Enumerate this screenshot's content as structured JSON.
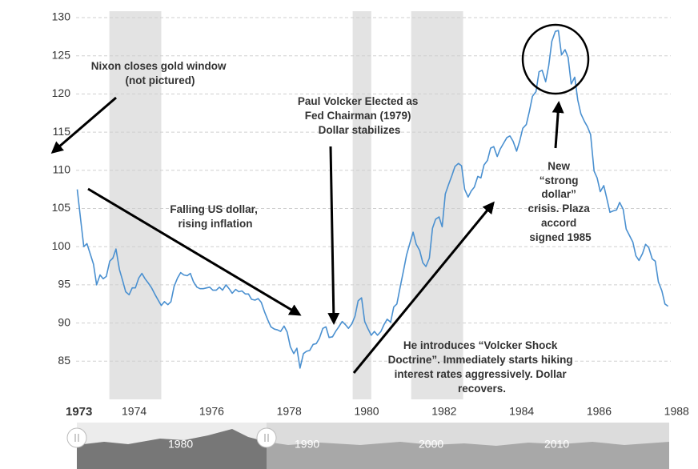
{
  "chart_data": {
    "type": "line",
    "x_start_label": "1973",
    "xlim": [
      1972.5,
      1987.85
    ],
    "xticks": [
      1974,
      1976,
      1978,
      1980,
      1982,
      1984,
      1986,
      1988
    ],
    "ylim": [
      80,
      130
    ],
    "yticks": [
      85,
      90,
      95,
      100,
      105,
      110,
      115,
      120,
      125,
      130
    ],
    "grid": true,
    "shaded_periods": [
      [
        1973.36,
        1974.7
      ],
      [
        1979.64,
        1980.12
      ],
      [
        1981.15,
        1982.49
      ]
    ],
    "series": [
      {
        "color": "#4a90d0",
        "x": [
          1972.53,
          1972.62,
          1972.7,
          1972.78,
          1972.87,
          1972.95,
          1973.03,
          1973.12,
          1973.2,
          1973.28,
          1973.37,
          1973.45,
          1973.53,
          1973.62,
          1973.7,
          1973.78,
          1973.87,
          1973.95,
          1974.03,
          1974.12,
          1974.2,
          1974.28,
          1974.37,
          1974.45,
          1974.53,
          1974.62,
          1974.7,
          1974.78,
          1974.87,
          1974.95,
          1975.03,
          1975.12,
          1975.2,
          1975.28,
          1975.37,
          1975.45,
          1975.53,
          1975.62,
          1975.7,
          1975.78,
          1975.87,
          1975.95,
          1976.03,
          1976.12,
          1976.2,
          1976.28,
          1976.37,
          1976.45,
          1976.53,
          1976.62,
          1976.7,
          1976.78,
          1976.87,
          1976.95,
          1977.03,
          1977.12,
          1977.2,
          1977.28,
          1977.37,
          1977.45,
          1977.53,
          1977.62,
          1977.7,
          1977.78,
          1977.87,
          1977.95,
          1978.03,
          1978.12,
          1978.2,
          1978.28,
          1978.37,
          1978.45,
          1978.53,
          1978.62,
          1978.7,
          1978.78,
          1978.87,
          1978.95,
          1979.03,
          1979.12,
          1979.2,
          1979.28,
          1979.37,
          1979.45,
          1979.53,
          1979.62,
          1979.7,
          1979.78,
          1979.87,
          1979.95,
          1980.03,
          1980.12,
          1980.2,
          1980.28,
          1980.37,
          1980.45,
          1980.53,
          1980.62,
          1980.7,
          1980.78,
          1980.87,
          1980.95,
          1981.03,
          1981.12,
          1981.2,
          1981.28,
          1981.37,
          1981.45,
          1981.53,
          1981.62,
          1981.7,
          1981.78,
          1981.87,
          1981.95,
          1982.03,
          1982.12,
          1982.2,
          1982.28,
          1982.37,
          1982.45,
          1982.53,
          1982.62,
          1982.7,
          1982.78,
          1982.87,
          1982.95,
          1983.03,
          1983.12,
          1983.2,
          1983.28,
          1983.37,
          1983.45,
          1983.53,
          1983.62,
          1983.7,
          1983.78,
          1983.87,
          1983.95,
          1984.03,
          1984.12,
          1984.2,
          1984.28,
          1984.37,
          1984.45,
          1984.53,
          1984.62,
          1984.7,
          1984.78,
          1984.87,
          1984.95,
          1985.03,
          1985.12,
          1985.2,
          1985.28,
          1985.37,
          1985.45,
          1985.53,
          1985.62,
          1985.7,
          1985.78,
          1985.87,
          1985.95,
          1986.03,
          1986.12,
          1986.2,
          1986.28,
          1986.37,
          1986.45,
          1986.53,
          1986.62,
          1986.7,
          1986.78,
          1986.87,
          1986.95,
          1987.03,
          1987.12,
          1987.2,
          1987.28,
          1987.37,
          1987.45,
          1987.53,
          1987.62,
          1987.7,
          1987.78
        ],
        "values": [
          107.5,
          103.5,
          100.0,
          100.4,
          99.0,
          97.7,
          95.0,
          96.3,
          95.8,
          96.1,
          98.1,
          98.5,
          99.7,
          97.0,
          95.6,
          94.1,
          93.7,
          94.6,
          94.6,
          95.9,
          96.5,
          95.8,
          95.2,
          94.6,
          93.8,
          93.0,
          92.3,
          92.8,
          92.4,
          92.8,
          94.8,
          95.9,
          96.6,
          96.3,
          96.2,
          96.5,
          95.4,
          94.7,
          94.5,
          94.5,
          94.6,
          94.7,
          94.3,
          94.3,
          94.7,
          94.3,
          95.0,
          94.5,
          93.9,
          94.4,
          94.1,
          94.2,
          93.8,
          93.8,
          93.1,
          93.0,
          93.2,
          92.7,
          91.4,
          90.4,
          89.5,
          89.2,
          89.1,
          88.9,
          89.6,
          88.8,
          86.9,
          86.0,
          86.7,
          84.1,
          86.0,
          86.3,
          86.4,
          87.2,
          87.3,
          88.0,
          89.3,
          89.5,
          88.1,
          88.2,
          88.9,
          89.5,
          90.2,
          89.8,
          89.3,
          89.9,
          90.9,
          92.9,
          93.3,
          90.2,
          89.3,
          88.4,
          88.9,
          88.4,
          88.9,
          89.8,
          90.5,
          90.1,
          92.1,
          92.5,
          94.8,
          96.8,
          98.9,
          100.5,
          101.9,
          100.3,
          99.5,
          97.9,
          97.4,
          98.5,
          102.4,
          103.6,
          103.9,
          102.6,
          106.9,
          108.2,
          109.3,
          110.5,
          110.9,
          110.6,
          107.5,
          106.5,
          107.3,
          107.8,
          109.2,
          109.0,
          110.7,
          111.3,
          112.9,
          113.1,
          111.8,
          112.8,
          113.5,
          114.3,
          114.5,
          113.8,
          112.5,
          113.8,
          115.5,
          116.0,
          117.7,
          119.7,
          120.3,
          122.9,
          123.1,
          121.6,
          123.7,
          126.9,
          128.2,
          128.3,
          125.1,
          125.8,
          124.8,
          121.3,
          122.2,
          119.2,
          117.4,
          116.4,
          115.7,
          114.7,
          109.9,
          109.0,
          107.2,
          108.0,
          106.3,
          104.5,
          104.7,
          104.8,
          105.8,
          104.9,
          102.3,
          101.5,
          100.6,
          98.8,
          98.2,
          99.1,
          100.3,
          99.9,
          98.4,
          98.1,
          95.4,
          94.2,
          92.5,
          92.2
        ]
      }
    ],
    "annotations": [
      {
        "lines": [
          "Nixon closes gold window",
          "(not pictured)"
        ]
      },
      {
        "lines": [
          "Paul Volcker Elected as",
          "Fed Chairman (1979)",
          "Dollar stabilizes"
        ]
      },
      {
        "lines": [
          "Falling US dollar,",
          "rising inflation"
        ]
      },
      {
        "lines": [
          "He introduces “Volcker Shock",
          "Doctrine”. Immediately starts hiking",
          "interest rates aggressively. Dollar",
          "recovers."
        ]
      },
      {
        "lines": [
          "New",
          "“strong",
          "dollar”",
          "crisis. Plaza",
          "accord",
          "signed 1985"
        ]
      }
    ],
    "navigator": {
      "labels": [
        "1980",
        "1990",
        "2000",
        "2010"
      ]
    }
  }
}
